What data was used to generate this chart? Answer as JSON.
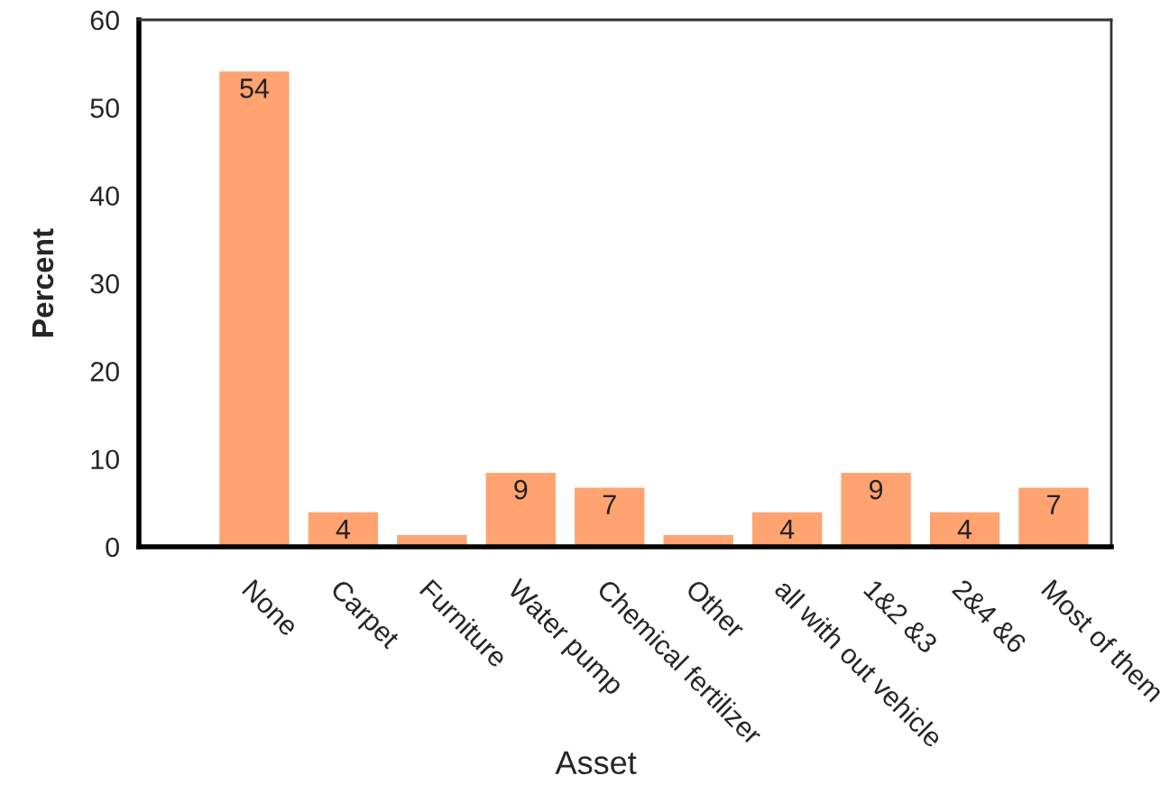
{
  "chart_data": {
    "type": "bar",
    "xlabel": "Asset",
    "ylabel": "Percent",
    "categories": [
      "None",
      "Carpet",
      "Furniture",
      "Water pump",
      "Chemical fertilizer",
      "Other",
      "all with out vehicle",
      "1&2 &3",
      "2&4 &6",
      "Most of them"
    ],
    "values": [
      54.2,
      4,
      1.4,
      8.5,
      6.8,
      1.4,
      4,
      8.5,
      4,
      6.8
    ],
    "value_labels": [
      "54",
      "4",
      null,
      "9",
      "7",
      null,
      "4",
      "9",
      "4",
      "7"
    ],
    "color": "#ffa370",
    "ylim": [
      0,
      60
    ],
    "yticks": [
      0,
      10,
      20,
      30,
      40,
      50,
      60
    ],
    "grid": false,
    "legend": false
  }
}
